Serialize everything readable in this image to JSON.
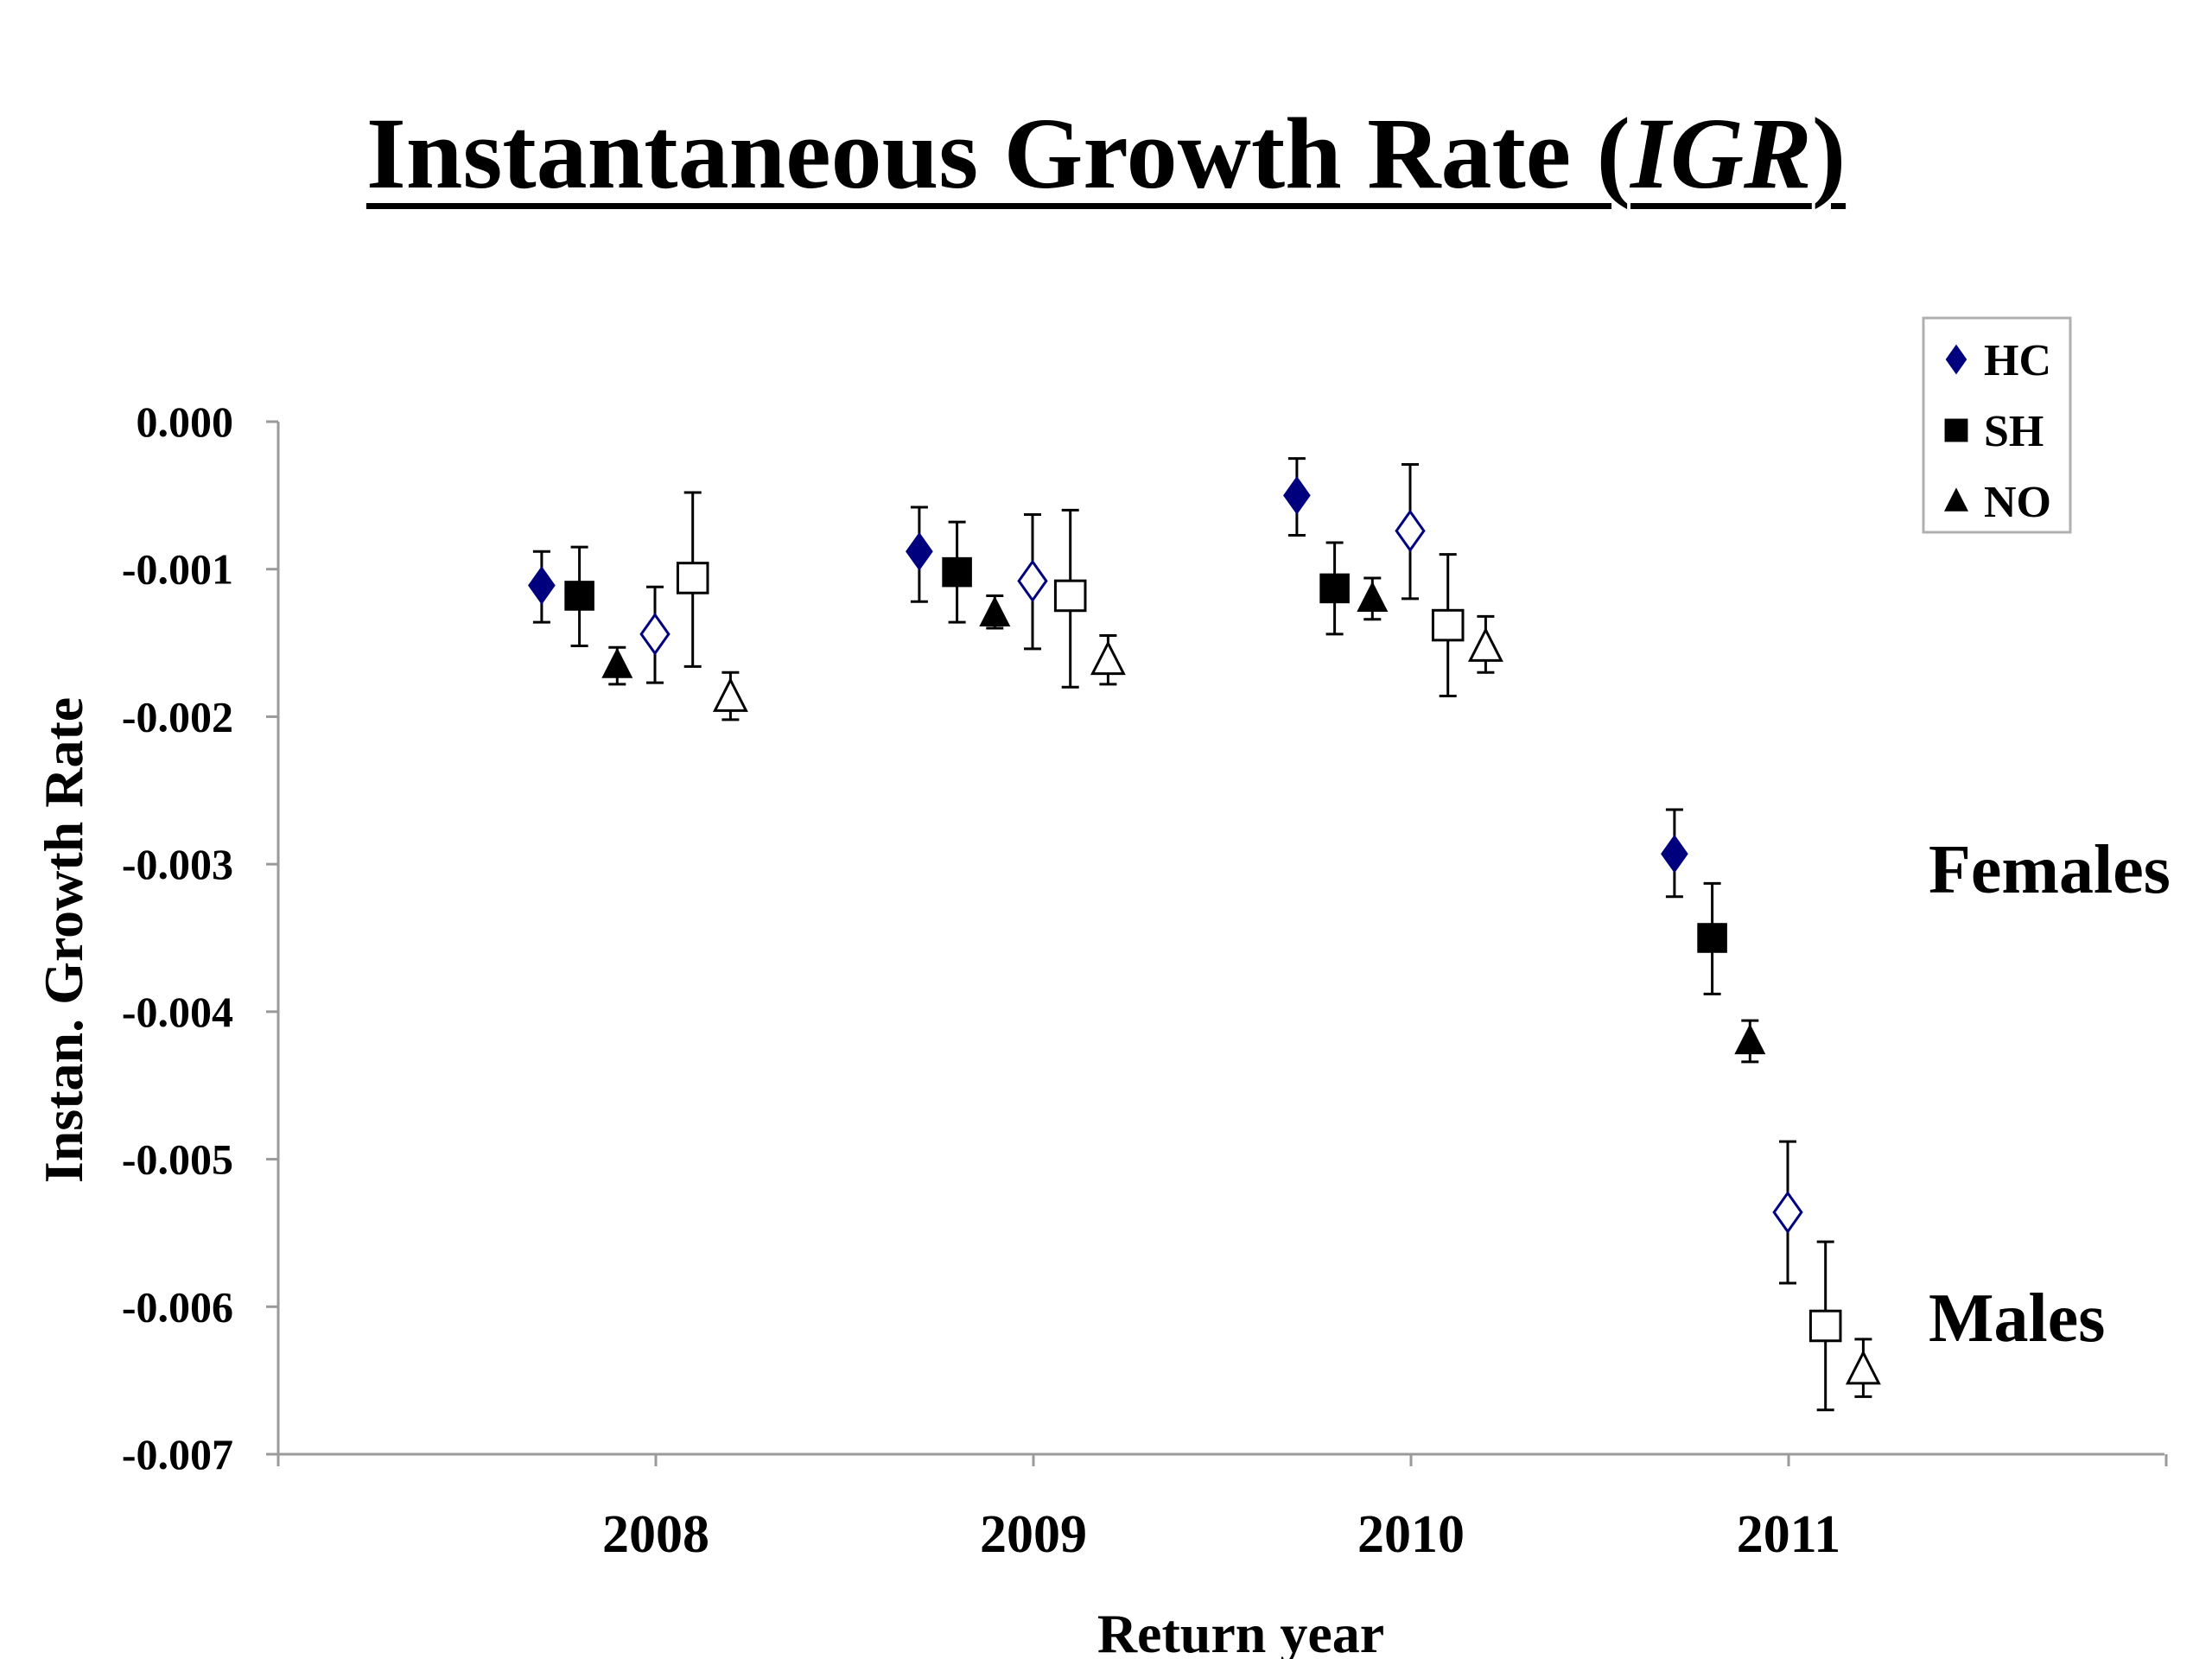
{
  "title": {
    "prefix": "Instantaneous Growth Rate (",
    "italic": "IGR",
    "suffix": ")"
  },
  "chart_data": {
    "type": "scatter",
    "title": "Instantaneous Growth Rate (IGR)",
    "xlabel": "Return year",
    "ylabel": "Instan. Growth Rate",
    "categories": [
      "2008",
      "2009",
      "2010",
      "2011"
    ],
    "ylim": [
      -0.007,
      0.0
    ],
    "yticks": [
      "0.000",
      "-0.001",
      "-0.002",
      "-0.003",
      "-0.004",
      "-0.005",
      "-0.006",
      "-0.007"
    ],
    "grid": false,
    "legend_position": "top-right",
    "legend": [
      {
        "label": "HC",
        "marker": "diamond",
        "color": "#00007f"
      },
      {
        "label": "SH",
        "marker": "square",
        "color": "#000000"
      },
      {
        "label": "NO",
        "marker": "triangle",
        "color": "#000000"
      }
    ],
    "annotations": [
      "Females",
      "Males"
    ],
    "groups": [
      {
        "name": "Females",
        "filled": true,
        "series": [
          {
            "legend": "HC",
            "offset": -0.3,
            "values": [
              -0.00111,
              -0.00088,
              -0.0005,
              -0.00293
            ],
            "err_low": [
              -0.00136,
              -0.00122,
              -0.00077,
              -0.00322
            ],
            "err_high": [
              -0.00088,
              -0.00058,
              -0.00025,
              -0.00263
            ]
          },
          {
            "legend": "SH",
            "offset": -0.2,
            "values": [
              -0.00118,
              -0.00102,
              -0.00113,
              -0.0035
            ],
            "err_low": [
              -0.00152,
              -0.00136,
              -0.00144,
              -0.00388
            ],
            "err_high": [
              -0.00085,
              -0.00068,
              -0.00082,
              -0.00313
            ]
          },
          {
            "legend": "NO",
            "offset": -0.1,
            "values": [
              -0.00165,
              -0.0013,
              -0.0012,
              -0.0042
            ],
            "err_low": [
              -0.00178,
              -0.0014,
              -0.00134,
              -0.00434
            ],
            "err_high": [
              -0.00153,
              -0.00118,
              -0.00106,
              -0.00406
            ]
          }
        ]
      },
      {
        "name": "Males",
        "filled": false,
        "series": [
          {
            "legend": "HC",
            "offset": 0.0,
            "values": [
              -0.00144,
              -0.00108,
              -0.00074,
              -0.00536
            ],
            "err_low": [
              -0.00177,
              -0.00154,
              -0.0012,
              -0.00584
            ],
            "err_high": [
              -0.00112,
              -0.00063,
              -0.00029,
              -0.00488
            ]
          },
          {
            "legend": "SH",
            "offset": 0.1,
            "values": [
              -0.00106,
              -0.00118,
              -0.00138,
              -0.00613
            ],
            "err_low": [
              -0.00166,
              -0.0018,
              -0.00186,
              -0.0067
            ],
            "err_high": [
              -0.00048,
              -0.0006,
              -0.0009,
              -0.00556
            ]
          },
          {
            "legend": "NO",
            "offset": 0.2,
            "values": [
              -0.00187,
              -0.00162,
              -0.00153,
              -0.00643
            ],
            "err_low": [
              -0.00202,
              -0.00178,
              -0.0017,
              -0.00661
            ],
            "err_high": [
              -0.0017,
              -0.00145,
              -0.00132,
              -0.00622
            ]
          }
        ]
      }
    ]
  }
}
